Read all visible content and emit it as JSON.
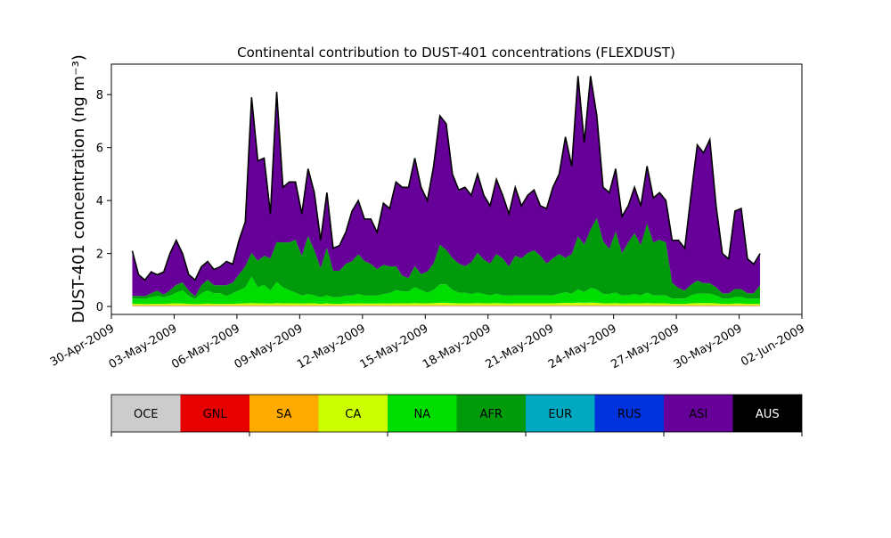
{
  "chart_data": {
    "type": "area",
    "title": "Continental contribution to DUST-401 concentrations (FLEXDUST)",
    "xlabel": "",
    "ylabel": "DUST-401 concentration (ng m⁻³)",
    "ylim": [
      -0.3,
      9.15
    ],
    "x_start": "2009-05-01",
    "x_end": "2009-05-31",
    "xlim": [
      "2009-04-30",
      "2009-06-02"
    ],
    "x_ticks": [
      "30-Apr-2009",
      "03-May-2009",
      "06-May-2009",
      "09-May-2009",
      "12-May-2009",
      "15-May-2009",
      "18-May-2009",
      "21-May-2009",
      "24-May-2009",
      "27-May-2009",
      "30-May-2009",
      "02-Jun-2009"
    ],
    "y_ticks": [
      0,
      2,
      4,
      6,
      8
    ],
    "grid": false,
    "total": [
      2.1,
      1.2,
      1.0,
      1.3,
      1.2,
      1.3,
      2.0,
      2.5,
      2.0,
      1.2,
      1.0,
      1.5,
      1.7,
      1.4,
      1.5,
      1.7,
      1.6,
      2.5,
      3.2,
      7.9,
      5.5,
      5.6,
      3.5,
      8.1,
      4.5,
      4.7,
      4.7,
      3.5,
      5.2,
      4.3,
      2.5,
      4.3,
      2.2,
      2.3,
      2.8,
      3.6,
      4.0,
      3.3,
      3.3,
      2.8,
      3.9,
      3.7,
      4.7,
      4.5,
      4.5,
      5.6,
      4.5,
      4.0,
      5.3,
      7.2,
      6.9,
      5.0,
      4.4,
      4.5,
      4.2,
      5.0,
      4.2,
      3.8,
      4.8,
      4.2,
      3.5,
      4.5,
      3.8,
      4.2,
      4.4,
      3.8,
      3.7,
      4.5,
      5.0,
      6.4,
      5.3,
      8.7,
      6.2,
      8.7,
      7.2,
      4.5,
      4.3,
      5.2,
      3.4,
      3.8,
      4.5,
      3.8,
      5.3,
      4.1,
      4.3,
      4.0,
      2.5,
      2.5,
      2.2,
      4.2,
      6.1,
      5.8,
      6.3,
      3.8,
      2.0,
      1.8,
      3.6,
      3.7,
      1.8,
      1.6,
      2.0
    ],
    "stack_order_bottom_to_top": [
      "OCE",
      "GNL",
      "SA",
      "CA",
      "NA",
      "AFR",
      "EUR",
      "RUS",
      "ASI",
      "AUS"
    ],
    "series": [
      {
        "name": "OCE",
        "color": "#cccccc",
        "values": [
          0.02,
          0.02,
          0.02,
          0.02,
          0.02,
          0.02,
          0.02,
          0.02,
          0.02,
          0.02,
          0.02,
          0.02,
          0.02,
          0.02,
          0.02,
          0.02,
          0.02,
          0.02,
          0.02,
          0.02,
          0.02,
          0.02,
          0.02,
          0.02,
          0.02,
          0.02,
          0.02,
          0.02,
          0.02,
          0.02,
          0.02,
          0.02,
          0.02,
          0.02,
          0.02,
          0.02,
          0.02,
          0.02,
          0.02,
          0.02,
          0.02,
          0.02,
          0.02,
          0.02,
          0.02,
          0.02,
          0.02,
          0.02,
          0.02,
          0.02,
          0.02,
          0.02,
          0.02,
          0.02,
          0.02,
          0.02,
          0.02,
          0.02,
          0.02,
          0.02,
          0.02,
          0.02,
          0.02,
          0.02,
          0.02,
          0.02,
          0.02,
          0.02,
          0.02,
          0.02,
          0.02,
          0.02,
          0.02,
          0.02,
          0.02,
          0.02,
          0.02,
          0.02,
          0.02,
          0.02,
          0.02,
          0.02,
          0.02,
          0.02,
          0.02,
          0.02,
          0.02,
          0.02,
          0.02,
          0.02,
          0.02,
          0.02,
          0.02,
          0.02,
          0.02,
          0.02,
          0.02,
          0.02,
          0.02,
          0.02,
          0.02
        ]
      },
      {
        "name": "GNL",
        "color": "#e60000",
        "values": [
          0.01,
          0.01,
          0.01,
          0.01,
          0.01,
          0.01,
          0.01,
          0.01,
          0.01,
          0.01,
          0.01,
          0.01,
          0.01,
          0.01,
          0.01,
          0.01,
          0.01,
          0.01,
          0.01,
          0.01,
          0.01,
          0.01,
          0.01,
          0.01,
          0.01,
          0.01,
          0.01,
          0.01,
          0.01,
          0.01,
          0.01,
          0.01,
          0.01,
          0.01,
          0.01,
          0.01,
          0.01,
          0.01,
          0.01,
          0.01,
          0.01,
          0.01,
          0.01,
          0.01,
          0.01,
          0.01,
          0.01,
          0.01,
          0.01,
          0.01,
          0.01,
          0.01,
          0.01,
          0.01,
          0.01,
          0.01,
          0.01,
          0.01,
          0.01,
          0.01,
          0.01,
          0.01,
          0.01,
          0.01,
          0.01,
          0.01,
          0.01,
          0.01,
          0.01,
          0.01,
          0.01,
          0.01,
          0.01,
          0.01,
          0.01,
          0.01,
          0.01,
          0.01,
          0.01,
          0.01,
          0.01,
          0.01,
          0.01,
          0.01,
          0.01,
          0.01,
          0.01,
          0.01,
          0.01,
          0.01,
          0.01,
          0.01,
          0.01,
          0.01,
          0.01,
          0.01,
          0.01,
          0.01,
          0.01,
          0.01,
          0.01
        ]
      },
      {
        "name": "SA",
        "color": "#ffaa00",
        "values": [
          0.02,
          0.02,
          0.02,
          0.02,
          0.02,
          0.02,
          0.02,
          0.02,
          0.02,
          0.02,
          0.02,
          0.02,
          0.02,
          0.02,
          0.02,
          0.02,
          0.02,
          0.02,
          0.02,
          0.02,
          0.02,
          0.02,
          0.02,
          0.02,
          0.02,
          0.02,
          0.02,
          0.02,
          0.02,
          0.02,
          0.02,
          0.02,
          0.02,
          0.02,
          0.02,
          0.02,
          0.02,
          0.02,
          0.02,
          0.02,
          0.02,
          0.02,
          0.02,
          0.02,
          0.02,
          0.02,
          0.02,
          0.02,
          0.02,
          0.02,
          0.02,
          0.02,
          0.02,
          0.02,
          0.02,
          0.02,
          0.02,
          0.02,
          0.02,
          0.02,
          0.02,
          0.02,
          0.02,
          0.02,
          0.02,
          0.02,
          0.02,
          0.02,
          0.02,
          0.02,
          0.02,
          0.02,
          0.02,
          0.02,
          0.02,
          0.02,
          0.02,
          0.02,
          0.02,
          0.02,
          0.02,
          0.02,
          0.02,
          0.02,
          0.02,
          0.02,
          0.02,
          0.02,
          0.02,
          0.02,
          0.02,
          0.02,
          0.02,
          0.02,
          0.02,
          0.02,
          0.02,
          0.02,
          0.02,
          0.02,
          0.02
        ]
      },
      {
        "name": "CA",
        "color": "#ccff00",
        "values": [
          0.05,
          0.05,
          0.04,
          0.05,
          0.05,
          0.05,
          0.06,
          0.07,
          0.06,
          0.05,
          0.04,
          0.05,
          0.06,
          0.05,
          0.05,
          0.05,
          0.05,
          0.06,
          0.07,
          0.08,
          0.07,
          0.07,
          0.06,
          0.08,
          0.07,
          0.07,
          0.07,
          0.06,
          0.07,
          0.07,
          0.05,
          0.07,
          0.05,
          0.05,
          0.06,
          0.06,
          0.07,
          0.06,
          0.06,
          0.06,
          0.07,
          0.06,
          0.07,
          0.07,
          0.07,
          0.08,
          0.07,
          0.07,
          0.08,
          0.09,
          0.09,
          0.08,
          0.07,
          0.07,
          0.07,
          0.08,
          0.07,
          0.07,
          0.08,
          0.07,
          0.06,
          0.07,
          0.07,
          0.07,
          0.07,
          0.07,
          0.07,
          0.07,
          0.08,
          0.09,
          0.08,
          0.1,
          0.09,
          0.1,
          0.09,
          0.07,
          0.07,
          0.08,
          0.06,
          0.07,
          0.07,
          0.07,
          0.08,
          0.07,
          0.07,
          0.07,
          0.05,
          0.05,
          0.05,
          0.07,
          0.08,
          0.08,
          0.08,
          0.07,
          0.05,
          0.05,
          0.06,
          0.06,
          0.05,
          0.05,
          0.05
        ]
      },
      {
        "name": "NA",
        "color": "#00dd00",
        "values": [
          0.2,
          0.2,
          0.2,
          0.25,
          0.3,
          0.25,
          0.3,
          0.4,
          0.5,
          0.3,
          0.2,
          0.4,
          0.5,
          0.4,
          0.4,
          0.3,
          0.4,
          0.5,
          0.6,
          1.0,
          0.6,
          0.7,
          0.5,
          0.8,
          0.6,
          0.5,
          0.4,
          0.3,
          0.35,
          0.3,
          0.25,
          0.3,
          0.25,
          0.25,
          0.3,
          0.3,
          0.35,
          0.3,
          0.3,
          0.3,
          0.35,
          0.4,
          0.5,
          0.45,
          0.45,
          0.6,
          0.5,
          0.4,
          0.5,
          0.7,
          0.7,
          0.5,
          0.4,
          0.4,
          0.35,
          0.4,
          0.35,
          0.3,
          0.35,
          0.3,
          0.3,
          0.3,
          0.3,
          0.3,
          0.3,
          0.3,
          0.3,
          0.3,
          0.35,
          0.4,
          0.35,
          0.5,
          0.4,
          0.55,
          0.5,
          0.35,
          0.35,
          0.4,
          0.3,
          0.3,
          0.35,
          0.3,
          0.4,
          0.3,
          0.3,
          0.3,
          0.2,
          0.2,
          0.2,
          0.3,
          0.35,
          0.35,
          0.35,
          0.3,
          0.2,
          0.2,
          0.25,
          0.25,
          0.2,
          0.2,
          0.2
        ]
      },
      {
        "name": "AFR",
        "color": "#009a0a",
        "values": [
          0.1,
          0.1,
          0.1,
          0.15,
          0.2,
          0.1,
          0.2,
          0.3,
          0.3,
          0.2,
          0.1,
          0.3,
          0.4,
          0.3,
          0.3,
          0.4,
          0.4,
          0.6,
          0.8,
          0.9,
          1.0,
          1.1,
          1.2,
          1.5,
          1.7,
          1.8,
          2.0,
          1.5,
          2.2,
          1.7,
          1.1,
          1.8,
          1.0,
          1.0,
          1.2,
          1.3,
          1.5,
          1.3,
          1.2,
          1.0,
          1.1,
          1.0,
          0.9,
          0.6,
          0.5,
          0.8,
          0.6,
          0.8,
          1.0,
          1.5,
          1.3,
          1.2,
          1.1,
          1.0,
          1.2,
          1.5,
          1.3,
          1.2,
          1.5,
          1.4,
          1.1,
          1.5,
          1.4,
          1.6,
          1.7,
          1.5,
          1.2,
          1.4,
          1.5,
          1.3,
          1.5,
          2.0,
          1.8,
          2.2,
          2.7,
          2.0,
          1.7,
          2.3,
          1.6,
          2.0,
          2.3,
          1.9,
          2.6,
          2.0,
          2.1,
          2.0,
          0.6,
          0.4,
          0.3,
          0.4,
          0.5,
          0.4,
          0.4,
          0.3,
          0.2,
          0.2,
          0.3,
          0.3,
          0.2,
          0.2,
          0.5
        ]
      },
      {
        "name": "EUR",
        "color": "#00a8c0",
        "values": [
          0.0,
          0.0,
          0.0,
          0.0,
          0.0,
          0.0,
          0.0,
          0.0,
          0.0,
          0.0,
          0.0,
          0.0,
          0.0,
          0.0,
          0.0,
          0.0,
          0.0,
          0.0,
          0.0,
          0.0,
          0.0,
          0.0,
          0.0,
          0.0,
          0.0,
          0.0,
          0.0,
          0.0,
          0.0,
          0.0,
          0.0,
          0.0,
          0.0,
          0.0,
          0.0,
          0.0,
          0.0,
          0.0,
          0.0,
          0.0,
          0.0,
          0.0,
          0.0,
          0.0,
          0.0,
          0.0,
          0.0,
          0.0,
          0.0,
          0.0,
          0.0,
          0.0,
          0.0,
          0.0,
          0.0,
          0.0,
          0.0,
          0.0,
          0.0,
          0.0,
          0.0,
          0.0,
          0.0,
          0.0,
          0.0,
          0.0,
          0.0,
          0.0,
          0.0,
          0.0,
          0.0,
          0.0,
          0.0,
          0.0,
          0.0,
          0.0,
          0.0,
          0.0,
          0.0,
          0.0,
          0.0,
          0.0,
          0.0,
          0.0,
          0.0,
          0.0,
          0.0,
          0.0,
          0.0,
          0.0,
          0.0,
          0.0,
          0.0,
          0.0,
          0.0,
          0.0,
          0.0,
          0.0,
          0.0,
          0.0,
          0.0
        ]
      },
      {
        "name": "RUS",
        "color": "#0033dd",
        "values": [
          0.0,
          0.0,
          0.0,
          0.0,
          0.0,
          0.0,
          0.0,
          0.0,
          0.0,
          0.0,
          0.0,
          0.0,
          0.0,
          0.0,
          0.0,
          0.0,
          0.0,
          0.0,
          0.0,
          0.0,
          0.0,
          0.0,
          0.0,
          0.0,
          0.0,
          0.0,
          0.0,
          0.0,
          0.0,
          0.0,
          0.0,
          0.0,
          0.0,
          0.0,
          0.0,
          0.0,
          0.0,
          0.0,
          0.0,
          0.0,
          0.0,
          0.0,
          0.0,
          0.0,
          0.0,
          0.0,
          0.0,
          0.0,
          0.0,
          0.0,
          0.0,
          0.0,
          0.0,
          0.0,
          0.0,
          0.0,
          0.0,
          0.0,
          0.0,
          0.0,
          0.0,
          0.0,
          0.0,
          0.0,
          0.0,
          0.0,
          0.0,
          0.0,
          0.0,
          0.0,
          0.0,
          0.0,
          0.0,
          0.0,
          0.0,
          0.0,
          0.0,
          0.0,
          0.0,
          0.0,
          0.0,
          0.0,
          0.0,
          0.0,
          0.0,
          0.0,
          0.0,
          0.0,
          0.0,
          0.0,
          0.0,
          0.0,
          0.0,
          0.0,
          0.0,
          0.0,
          0.0,
          0.0,
          0.0,
          0.0,
          0.0
        ]
      },
      {
        "name": "ASI",
        "color": "#660099",
        "values": [
          1.7,
          0.8,
          0.63,
          0.85,
          0.6,
          0.85,
          1.41,
          1.7,
          1.11,
          0.62,
          0.63,
          0.72,
          0.71,
          0.62,
          0.72,
          0.92,
          0.72,
          1.31,
          1.68,
          5.87,
          3.78,
          3.68,
          1.69,
          5.67,
          2.08,
          2.28,
          2.18,
          1.6,
          2.53,
          2.18,
          1.04,
          2.08,
          0.84,
          0.94,
          1.19,
          1.88,
          1.99,
          1.59,
          1.69,
          1.39,
          2.33,
          2.19,
          3.18,
          3.34,
          3.44,
          4.08,
          3.28,
          2.69,
          3.68,
          4.87,
          4.77,
          3.18,
          2.79,
          2.99,
          2.54,
          2.99,
          2.44,
          2.2,
          2.82,
          2.4,
          2.01,
          2.6,
          2.0,
          2.2,
          2.3,
          1.9,
          2.1,
          2.7,
          3.03,
          4.6,
          3.34,
          6.05,
          3.87,
          5.81,
          3.87,
          2.03,
          2.14,
          2.37,
          1.41,
          1.4,
          1.72,
          1.48,
          2.19,
          1.69,
          1.8,
          1.58,
          1.62,
          1.82,
          1.62,
          3.39,
          5.12,
          4.93,
          5.43,
          3.08,
          1.5,
          1.32,
          2.97,
          3.05,
          1.32,
          1.12,
          1.2
        ]
      },
      {
        "name": "AUS",
        "color": "#000000",
        "values": [
          0.0,
          0.0,
          0.0,
          0.0,
          0.0,
          0.0,
          0.0,
          0.0,
          0.0,
          0.0,
          0.0,
          0.0,
          0.0,
          0.0,
          0.0,
          0.0,
          0.0,
          0.0,
          0.0,
          0.0,
          0.0,
          0.0,
          0.0,
          0.0,
          0.0,
          0.0,
          0.0,
          0.0,
          0.0,
          0.0,
          0.0,
          0.0,
          0.0,
          0.0,
          0.0,
          0.0,
          0.0,
          0.0,
          0.0,
          0.0,
          0.0,
          0.0,
          0.0,
          0.0,
          0.0,
          0.0,
          0.0,
          0.0,
          0.0,
          0.0,
          0.0,
          0.0,
          0.0,
          0.0,
          0.0,
          0.0,
          0.0,
          0.0,
          0.0,
          0.0,
          0.0,
          0.0,
          0.0,
          0.0,
          0.0,
          0.0,
          0.0,
          0.0,
          0.0,
          0.0,
          0.0,
          0.0,
          0.0,
          0.0,
          0.0,
          0.0,
          0.0,
          0.0,
          0.0,
          0.0,
          0.0,
          0.0,
          0.0,
          0.0,
          0.0,
          0.0,
          0.0,
          0.0,
          0.0,
          0.0,
          0.0,
          0.0,
          0.0,
          0.0,
          0.0,
          0.0,
          0.0,
          0.0,
          0.0,
          0.0,
          0.0
        ]
      }
    ],
    "colorbar": {
      "labels": [
        "OCE",
        "GNL",
        "SA",
        "CA",
        "NA",
        "AFR",
        "EUR",
        "RUS",
        "ASI",
        "AUS"
      ],
      "colors": [
        "#cccccc",
        "#e60000",
        "#ffaa00",
        "#ccff00",
        "#00dd00",
        "#009a0a",
        "#00a8c0",
        "#0033dd",
        "#660099",
        "#000000"
      ]
    }
  }
}
